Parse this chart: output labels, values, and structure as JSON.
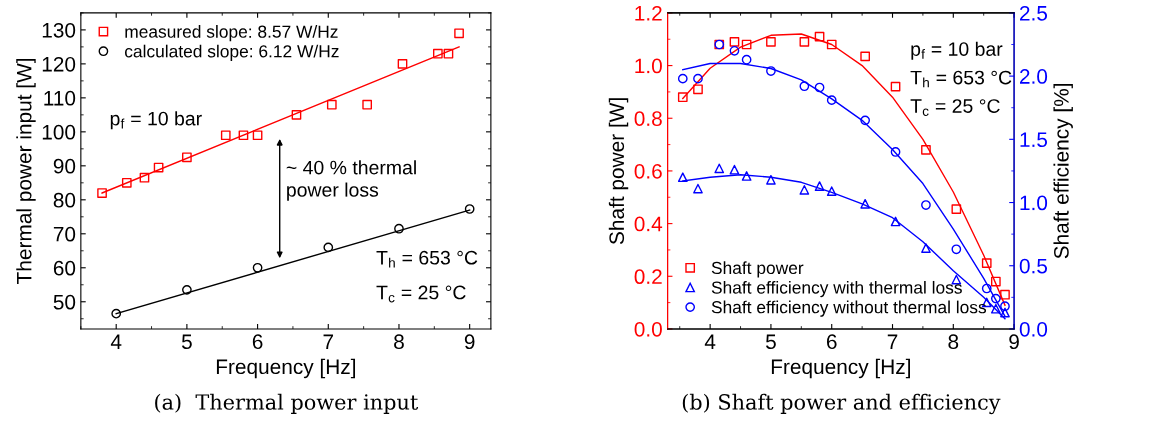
{
  "chart_data": [
    {
      "type": "scatter",
      "xlabel": "Frequency [Hz]",
      "ylabel": "Thermal power input [W]",
      "xlim": [
        3.5,
        9.3
      ],
      "ylim": [
        42,
        135
      ],
      "xticks": [
        4,
        5,
        6,
        7,
        8,
        9
      ],
      "yticks": [
        50,
        60,
        70,
        80,
        90,
        100,
        110,
        120,
        130
      ],
      "legend": "top left",
      "grid": false,
      "series": [
        {
          "name": "measured slope: 8.57 W/Hz",
          "color": "#ff0000",
          "marker": "square",
          "x": [
            3.8,
            4.15,
            4.4,
            4.6,
            5.0,
            5.55,
            5.8,
            6.0,
            6.55,
            7.05,
            7.55,
            8.05,
            8.55,
            8.7,
            8.85
          ],
          "values": [
            82,
            85,
            86.5,
            89.5,
            92.5,
            99,
            99,
            99,
            105,
            108,
            108,
            120,
            123,
            123,
            129
          ]
        },
        {
          "name": "calculated slope: 6.12 W/Hz",
          "color": "#000000",
          "marker": "circle",
          "x": [
            4,
            5,
            6,
            7,
            8,
            9
          ],
          "values": [
            46.5,
            53.5,
            60,
            66,
            71.5,
            77.3
          ]
        },
        {
          "type": "line",
          "color": "#ff0000",
          "x": [
            3.8,
            8.85
          ],
          "values": [
            82,
            125
          ]
        },
        {
          "type": "line",
          "color": "#000000",
          "x": [
            4,
            9
          ],
          "values": [
            46.5,
            77
          ]
        }
      ],
      "annotations": [
        "p$_{f}$ = 10 bar",
        "~ 40 % thermal\npower loss",
        "T$_{h}$ = 653 °C",
        "T$_{c}$ = 25 °C",
        "(a)  Thermal power input"
      ]
    },
    {
      "type": "scatter",
      "xlabel": "Frequency [Hz]",
      "ylabel": "Shaft power [W]",
      "y2label": "Shaft efficiency [%]",
      "xlim": [
        3.3,
        9.0
      ],
      "ylim": [
        0,
        1.2
      ],
      "y2lim": [
        0,
        2.5
      ],
      "xticks": [
        4,
        5,
        6,
        7,
        8,
        9
      ],
      "yticks": [
        {
          "value": 0,
          "label": "0.0"
        },
        0.2,
        0.4,
        0.6,
        0.8,
        {
          "value": 1,
          "label": "1.0"
        },
        1.2
      ],
      "y2ticks": [
        {
          "value": 0,
          "label": "0.0"
        },
        0.5,
        {
          "value": 1,
          "label": "1.0"
        },
        1.5,
        {
          "value": 2,
          "label": "2.0"
        },
        2.5
      ],
      "legend": "bottom left",
      "grid": false,
      "series": [
        {
          "name": "Shaft power",
          "color": "#ff0000",
          "marker": "square",
          "x": [
            3.55,
            3.8,
            4.15,
            4.4,
            4.6,
            5.0,
            5.55,
            5.8,
            6.0,
            6.55,
            7.05,
            7.55,
            8.05,
            8.55,
            8.7,
            8.85
          ],
          "values": [
            0.88,
            0.91,
            1.08,
            1.09,
            1.08,
            1.09,
            1.09,
            1.11,
            1.08,
            1.035,
            0.92,
            0.68,
            0.455,
            0.25,
            0.18,
            0.13
          ]
        },
        {
          "name": "Shaft efficiency with thermal loss",
          "color": "#0000ff",
          "marker": "triangle",
          "axis": "y2",
          "x": [
            3.55,
            3.8,
            4.15,
            4.4,
            4.6,
            5.0,
            5.55,
            5.8,
            6.0,
            6.55,
            7.05,
            7.55,
            8.05,
            8.55,
            8.7,
            8.85
          ],
          "values": [
            1.2,
            1.11,
            1.27,
            1.26,
            1.21,
            1.18,
            1.1,
            1.13,
            1.09,
            0.99,
            0.85,
            0.64,
            0.39,
            0.21,
            0.16,
            0.13
          ]
        },
        {
          "name": "Shaft efficiency without thermal loss",
          "color": "#0000ff",
          "marker": "circle",
          "axis": "y2",
          "x": [
            3.55,
            3.8,
            4.15,
            4.4,
            4.6,
            5.0,
            5.55,
            5.8,
            6.0,
            6.55,
            7.05,
            7.55,
            8.05,
            8.55,
            8.7,
            8.85
          ],
          "values": [
            1.98,
            1.98,
            2.25,
            2.2,
            2.13,
            2.04,
            1.92,
            1.91,
            1.81,
            1.65,
            1.4,
            0.98,
            0.63,
            0.32,
            0.24,
            0.18
          ]
        },
        {
          "type": "line",
          "color": "#ff0000",
          "x": [
            3.55,
            4,
            4.5,
            5,
            5.5,
            6,
            6.5,
            7,
            7.5,
            8,
            8.5,
            8.85
          ],
          "values": [
            0.875,
            0.99,
            1.07,
            1.115,
            1.12,
            1.08,
            1.0,
            0.88,
            0.72,
            0.52,
            0.28,
            0.09
          ]
        },
        {
          "type": "line",
          "color": "#0000ff",
          "axis": "y2",
          "x": [
            3.55,
            4,
            4.5,
            5,
            5.5,
            6,
            6.5,
            7,
            7.5,
            8,
            8.5,
            8.85
          ],
          "values": [
            1.17,
            1.2,
            1.22,
            1.2,
            1.16,
            1.08,
            0.99,
            0.88,
            0.69,
            0.46,
            0.25,
            0.08
          ]
        },
        {
          "type": "line",
          "color": "#0000ff",
          "axis": "y2",
          "x": [
            3.55,
            4,
            4.5,
            5,
            5.5,
            6,
            6.5,
            7,
            7.5,
            8,
            8.5,
            8.85
          ],
          "values": [
            2.05,
            2.1,
            2.1,
            2.06,
            1.97,
            1.82,
            1.65,
            1.42,
            1.15,
            0.79,
            0.4,
            0.1
          ]
        }
      ],
      "annotations": [
        "p$_{f}$ = 10 bar",
        "T$_{h}$ = 653 °C",
        "T$_{c}$ = 25 °C",
        "(b) Shaft power and efficiency"
      ]
    }
  ]
}
